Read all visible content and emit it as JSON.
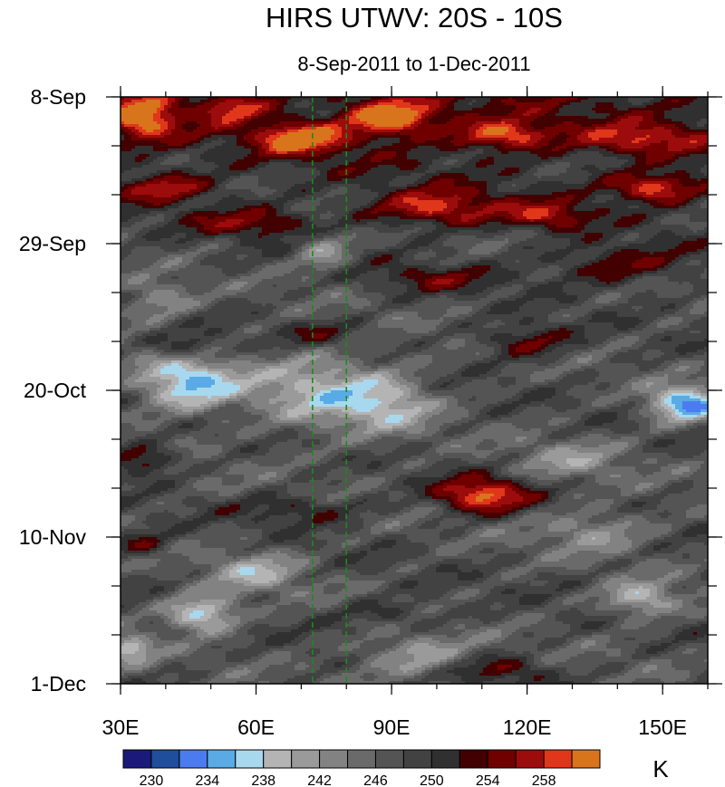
{
  "chart_data": {
    "type": "heatmap",
    "title": "HIRS UTWV: 20S - 10S",
    "subtitle": "8-Sep-2011 to 1-Dec-2011",
    "x_range": [
      30,
      160
    ],
    "x_ticks": [
      {
        "value": 30,
        "label": "30E"
      },
      {
        "value": 60,
        "label": "60E"
      },
      {
        "value": 90,
        "label": "90E"
      },
      {
        "value": 120,
        "label": "120E"
      },
      {
        "value": 150,
        "label": "150E"
      }
    ],
    "x_minor_step": 10,
    "y_range_days": [
      0,
      84
    ],
    "y_ticks": [
      {
        "day": 0,
        "label": "8-Sep"
      },
      {
        "day": 21,
        "label": "29-Sep"
      },
      {
        "day": 42,
        "label": "20-Oct"
      },
      {
        "day": 63,
        "label": "10-Nov"
      },
      {
        "day": 84,
        "label": "1-Dec"
      }
    ],
    "y_minor_step_days": 7,
    "reference_lines_lon": [
      72.5,
      80
    ],
    "reference_line_color": "#1a8c1a",
    "levels": [
      230,
      232,
      234,
      236,
      238,
      240,
      242,
      244,
      246,
      248,
      250,
      252,
      254,
      256,
      258,
      260
    ],
    "colors": [
      "#1a1a7a",
      "#1f4e9c",
      "#4a7cf0",
      "#5aaae6",
      "#a8d8ee",
      "#b4b4b4",
      "#9a9a9a",
      "#828282",
      "#6a6a6a",
      "#545454",
      "#424242",
      "#303030",
      "#420000",
      "#700000",
      "#9c0c0c",
      "#e0361a",
      "#d8741c"
    ],
    "colorbar_labels": [
      {
        "level": 230,
        "label": "230"
      },
      {
        "level": 234,
        "label": "234"
      },
      {
        "level": 238,
        "label": "238"
      },
      {
        "level": 242,
        "label": "242"
      },
      {
        "level": 246,
        "label": "246"
      },
      {
        "level": 250,
        "label": "250"
      },
      {
        "level": 254,
        "label": "254"
      },
      {
        "level": 258,
        "label": "258"
      }
    ],
    "units": "K",
    "features": [
      {
        "lon": 35,
        "day": 3,
        "amp": 11,
        "wlon": 7,
        "wday": 3
      },
      {
        "lon": 55,
        "day": 1.5,
        "amp": 7,
        "wlon": 7,
        "wday": 2
      },
      {
        "lon": 70,
        "day": 6,
        "amp": 12,
        "wlon": 9,
        "wday": 2
      },
      {
        "lon": 90,
        "day": 3,
        "amp": 13,
        "wlon": 10,
        "wday": 2.5
      },
      {
        "lon": 115,
        "day": 5.5,
        "amp": 10,
        "wlon": 10,
        "wday": 2
      },
      {
        "lon": 145,
        "day": 6,
        "amp": 7,
        "wlon": 12,
        "wday": 2
      },
      {
        "lon": 100,
        "day": 16,
        "amp": 10,
        "wlon": 14,
        "wday": 2.5
      },
      {
        "lon": 148,
        "day": 13,
        "amp": 11,
        "wlon": 10,
        "wday": 2
      },
      {
        "lon": 40,
        "day": 13,
        "amp": 7,
        "wlon": 10,
        "wday": 2
      },
      {
        "lon": 125,
        "day": 17,
        "amp": 8,
        "wlon": 9,
        "wday": 2
      },
      {
        "lon": 60,
        "day": 18,
        "amp": 6,
        "wlon": 14,
        "wday": 2
      },
      {
        "lon": 140,
        "day": 24,
        "amp": 6,
        "wlon": 16,
        "wday": 3
      },
      {
        "lon": 100,
        "day": 26,
        "amp": 5,
        "wlon": 15,
        "wday": 2
      },
      {
        "lon": 120,
        "day": 35,
        "amp": 7,
        "wlon": 10,
        "wday": 2.5
      },
      {
        "lon": 45,
        "day": 36,
        "amp": 6,
        "wlon": 8,
        "wday": 2
      },
      {
        "lon": 75,
        "day": 34,
        "amp": 5,
        "wlon": 10,
        "wday": 2
      },
      {
        "lon": 35,
        "day": 52,
        "amp": 8,
        "wlon": 7,
        "wday": 2
      },
      {
        "lon": 110,
        "day": 57,
        "amp": 13,
        "wlon": 10,
        "wday": 2.5
      },
      {
        "lon": 70,
        "day": 59,
        "amp": 5,
        "wlon": 14,
        "wday": 2
      },
      {
        "lon": 35,
        "day": 64,
        "amp": 6,
        "wlon": 6,
        "wday": 1.8
      },
      {
        "lon": 115,
        "day": 82,
        "amp": 6,
        "wlon": 10,
        "wday": 2
      },
      {
        "lon": 90,
        "day": 74,
        "amp": 4,
        "wlon": 12,
        "wday": 2
      },
      {
        "lon": 45,
        "day": 41,
        "amp": -12,
        "wlon": 11,
        "wday": 4
      },
      {
        "lon": 75,
        "day": 42,
        "amp": -8,
        "wlon": 16,
        "wday": 6
      },
      {
        "lon": 75,
        "day": 22,
        "amp": -7,
        "wlon": 6,
        "wday": 3
      },
      {
        "lon": 38,
        "day": 29,
        "amp": -6,
        "wlon": 8,
        "wday": 3
      },
      {
        "lon": 155,
        "day": 44,
        "amp": -14,
        "wlon": 8,
        "wday": 2.5
      },
      {
        "lon": 48,
        "day": 74,
        "amp": -12,
        "wlon": 8,
        "wday": 2.5
      },
      {
        "lon": 145,
        "day": 72,
        "amp": -9,
        "wlon": 8,
        "wday": 2.5
      },
      {
        "lon": 32,
        "day": 79,
        "amp": -9,
        "wlon": 5,
        "wday": 2
      },
      {
        "lon": 60,
        "day": 68,
        "amp": -7,
        "wlon": 10,
        "wday": 3
      },
      {
        "lon": 95,
        "day": 80,
        "amp": -7,
        "wlon": 12,
        "wday": 3
      },
      {
        "lon": 130,
        "day": 52,
        "amp": -5,
        "wlon": 12,
        "wday": 3
      },
      {
        "lon": 135,
        "day": 62,
        "amp": -6,
        "wlon": 12,
        "wday": 3
      },
      {
        "lon": 90,
        "day": 44,
        "amp": -6,
        "wlon": 10,
        "wday": 4
      }
    ]
  }
}
